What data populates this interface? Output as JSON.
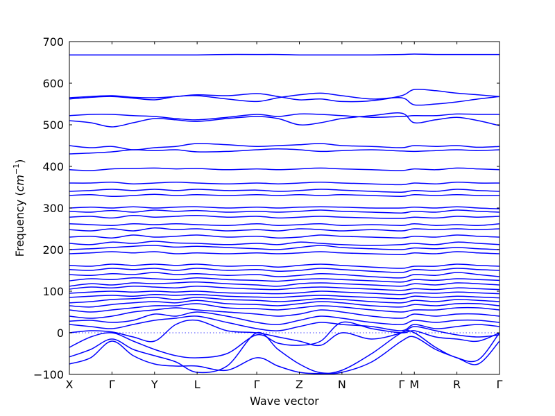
{
  "chart_data": {
    "type": "line",
    "title": "",
    "xlabel": "Wave vector",
    "ylabel": "Frequency (cm⁻¹)",
    "ylabel_parts": {
      "prefix": "Frequency (",
      "unit": "cm",
      "exp": "−1",
      "suffix": ")"
    },
    "xlim": [
      0,
      10.1
    ],
    "ylim": [
      -100,
      700
    ],
    "yticks": [
      -100,
      0,
      100,
      200,
      300,
      400,
      500,
      600,
      700
    ],
    "ytick_labels": [
      "−100",
      "0",
      "100",
      "200",
      "300",
      "400",
      "500",
      "600",
      "700"
    ],
    "xticks": [
      {
        "x": 0.0,
        "label": "X"
      },
      {
        "x": 1.0,
        "label": "Γ"
      },
      {
        "x": 2.0,
        "label": "Y"
      },
      {
        "x": 3.0,
        "label": "L"
      },
      {
        "x": 4.4,
        "label": "Γ"
      },
      {
        "x": 5.4,
        "label": "Z"
      },
      {
        "x": 6.4,
        "label": "N"
      },
      {
        "x": 7.8,
        "label": "Γ"
      },
      {
        "x": 8.1,
        "label": "M"
      },
      {
        "x": 9.1,
        "label": "R"
      },
      {
        "x": 10.1,
        "label": "Γ"
      }
    ],
    "series_color": "#0000ff",
    "zero_line_color": "#0000ff",
    "grid": false,
    "legend": "none",
    "band_x": [
      0,
      0.5,
      1.0,
      1.5,
      2.0,
      2.5,
      3.0,
      3.7,
      4.4,
      4.9,
      5.4,
      5.9,
      6.4,
      7.1,
      7.8,
      8.1,
      8.6,
      9.1,
      9.6,
      10.1
    ],
    "series": [
      {
        "values": [
          -75,
          -60,
          -20,
          -55,
          -75,
          -80,
          -80,
          -90,
          -60,
          -80,
          -95,
          -98,
          -95,
          -70,
          -20,
          -10,
          -40,
          -60,
          -75,
          -20
        ]
      },
      {
        "values": [
          -58,
          -40,
          -15,
          -40,
          -55,
          -70,
          -95,
          -80,
          0,
          -40,
          -75,
          -96,
          -90,
          -50,
          0,
          0,
          -35,
          -60,
          -65,
          0
        ]
      },
      {
        "values": [
          -35,
          -10,
          0,
          -20,
          -40,
          -55,
          -60,
          -50,
          -5,
          -25,
          -30,
          -20,
          25,
          10,
          0,
          5,
          -10,
          -15,
          -20,
          0
        ]
      },
      {
        "values": [
          0,
          5,
          2,
          -10,
          -20,
          20,
          30,
          5,
          0,
          -10,
          -20,
          -30,
          0,
          -15,
          0,
          15,
          5,
          -5,
          -10,
          -5
        ]
      },
      {
        "values": [
          20,
          15,
          10,
          20,
          30,
          35,
          40,
          25,
          10,
          5,
          15,
          25,
          20,
          15,
          5,
          20,
          10,
          15,
          20,
          15
        ]
      },
      {
        "values": [
          28,
          30,
          25,
          30,
          45,
          40,
          50,
          40,
          25,
          20,
          30,
          40,
          35,
          25,
          20,
          30,
          25,
          30,
          30,
          25
        ]
      },
      {
        "values": [
          40,
          35,
          40,
          50,
          55,
          60,
          55,
          50,
          45,
          40,
          45,
          55,
          50,
          40,
          35,
          45,
          40,
          45,
          45,
          40
        ]
      },
      {
        "values": [
          55,
          50,
          55,
          60,
          65,
          65,
          70,
          60,
          58,
          55,
          60,
          65,
          62,
          55,
          50,
          55,
          55,
          60,
          60,
          55
        ]
      },
      {
        "values": [
          65,
          62,
          68,
          72,
          75,
          72,
          78,
          70,
          68,
          65,
          70,
          75,
          72,
          65,
          62,
          68,
          65,
          70,
          70,
          65
        ]
      },
      {
        "values": [
          72,
          75,
          80,
          82,
          85,
          80,
          85,
          80,
          78,
          75,
          78,
          82,
          80,
          75,
          72,
          78,
          75,
          80,
          78,
          75
        ]
      },
      {
        "values": [
          85,
          88,
          90,
          88,
          92,
          90,
          92,
          88,
          86,
          85,
          88,
          90,
          88,
          85,
          82,
          88,
          85,
          88,
          86,
          84
        ]
      },
      {
        "values": [
          95,
          98,
          100,
          98,
          100,
          98,
          100,
          96,
          95,
          94,
          96,
          100,
          98,
          95,
          92,
          96,
          95,
          98,
          96,
          94
        ]
      },
      {
        "values": [
          105,
          110,
          108,
          112,
          110,
          108,
          112,
          108,
          105,
          104,
          108,
          110,
          108,
          105,
          102,
          106,
          104,
          108,
          106,
          104
        ]
      },
      {
        "values": [
          112,
          118,
          115,
          120,
          118,
          120,
          122,
          118,
          115,
          112,
          118,
          120,
          118,
          115,
          112,
          118,
          115,
          120,
          118,
          115
        ]
      },
      {
        "values": [
          125,
          130,
          128,
          132,
          130,
          128,
          132,
          128,
          126,
          124,
          128,
          130,
          128,
          125,
          122,
          128,
          126,
          130,
          128,
          126
        ]
      },
      {
        "values": [
          140,
          138,
          142,
          140,
          145,
          140,
          142,
          138,
          140,
          135,
          138,
          142,
          140,
          135,
          132,
          140,
          138,
          145,
          140,
          135
        ]
      },
      {
        "values": [
          152,
          150,
          155,
          152,
          155,
          150,
          155,
          150,
          152,
          148,
          150,
          155,
          152,
          148,
          145,
          152,
          150,
          155,
          152,
          150
        ]
      },
      {
        "values": [
          162,
          160,
          165,
          162,
          165,
          162,
          165,
          160,
          162,
          158,
          162,
          165,
          162,
          158,
          155,
          160,
          160,
          165,
          162,
          160
        ]
      },
      {
        "values": [
          190,
          192,
          195,
          192,
          195,
          190,
          192,
          190,
          192,
          190,
          192,
          195,
          192,
          190,
          188,
          192,
          190,
          195,
          192,
          190
        ]
      },
      {
        "values": [
          200,
          202,
          205,
          208,
          210,
          206,
          208,
          205,
          202,
          200,
          205,
          210,
          205,
          202,
          200,
          204,
          202,
          205,
          202,
          200
        ]
      },
      {
        "values": [
          215,
          212,
          218,
          215,
          220,
          216,
          215,
          212,
          215,
          212,
          218,
          215,
          212,
          210,
          212,
          215,
          212,
          218,
          215,
          212
        ]
      },
      {
        "values": [
          230,
          232,
          228,
          235,
          230,
          232,
          235,
          230,
          232,
          228,
          230,
          235,
          232,
          230,
          228,
          232,
          230,
          235,
          232,
          230
        ]
      },
      {
        "values": [
          248,
          245,
          250,
          245,
          252,
          248,
          250,
          245,
          248,
          245,
          250,
          248,
          245,
          248,
          245,
          250,
          248,
          250,
          248,
          250
        ]
      },
      {
        "values": [
          262,
          260,
          258,
          262,
          260,
          262,
          260,
          258,
          262,
          258,
          260,
          262,
          258,
          260,
          258,
          262,
          258,
          260,
          258,
          262
        ]
      },
      {
        "values": [
          278,
          280,
          276,
          282,
          278,
          280,
          282,
          278,
          280,
          276,
          278,
          280,
          278,
          276,
          275,
          278,
          276,
          280,
          278,
          280
        ]
      },
      {
        "values": [
          292,
          290,
          294,
          290,
          295,
          292,
          294,
          290,
          292,
          290,
          292,
          295,
          292,
          290,
          288,
          292,
          290,
          295,
          292,
          290
        ]
      },
      {
        "values": [
          300,
          302,
          300,
          303,
          300,
          302,
          303,
          300,
          302,
          300,
          302,
          303,
          302,
          300,
          300,
          302,
          300,
          303,
          300,
          298
        ]
      },
      {
        "values": [
          330,
          332,
          328,
          330,
          333,
          330,
          332,
          330,
          332,
          330,
          332,
          330,
          332,
          330,
          328,
          332,
          330,
          332,
          330,
          330
        ]
      },
      {
        "values": [
          340,
          342,
          345,
          342,
          345,
          342,
          345,
          342,
          343,
          340,
          342,
          345,
          343,
          340,
          338,
          342,
          340,
          345,
          342,
          340
        ]
      },
      {
        "values": [
          360,
          360,
          362,
          358,
          360,
          362,
          360,
          358,
          360,
          358,
          360,
          362,
          360,
          358,
          356,
          360,
          358,
          362,
          360,
          360
        ]
      },
      {
        "values": [
          392,
          390,
          394,
          395,
          396,
          394,
          395,
          392,
          394,
          392,
          394,
          396,
          394,
          392,
          390,
          394,
          392,
          396,
          394,
          392
        ]
      },
      {
        "values": [
          430,
          432,
          435,
          440,
          438,
          440,
          435,
          436,
          440,
          442,
          440,
          436,
          438,
          440,
          437,
          436,
          438,
          440,
          438,
          440
        ]
      },
      {
        "values": [
          450,
          445,
          448,
          440,
          445,
          448,
          455,
          452,
          448,
          450,
          452,
          455,
          450,
          448,
          445,
          450,
          448,
          450,
          446,
          448
        ]
      },
      {
        "values": [
          510,
          505,
          495,
          505,
          515,
          512,
          508,
          515,
          520,
          515,
          500,
          505,
          515,
          522,
          528,
          505,
          512,
          518,
          510,
          498
        ]
      },
      {
        "values": [
          522,
          525,
          525,
          522,
          520,
          515,
          512,
          518,
          525,
          520,
          526,
          525,
          522,
          518,
          520,
          522,
          522,
          526,
          525,
          525
        ]
      },
      {
        "values": [
          562,
          566,
          568,
          564,
          560,
          568,
          570,
          562,
          556,
          565,
          572,
          576,
          570,
          562,
          565,
          548,
          550,
          555,
          562,
          568
        ]
      },
      {
        "values": [
          565,
          568,
          570,
          566,
          565,
          568,
          572,
          570,
          575,
          568,
          560,
          562,
          556,
          558,
          570,
          585,
          582,
          576,
          572,
          568
        ]
      },
      {
        "values": [
          668,
          668,
          668,
          668,
          668,
          668,
          668,
          669,
          669,
          669,
          668,
          668,
          668,
          668,
          669,
          670,
          669,
          669,
          669,
          669
        ]
      }
    ]
  }
}
